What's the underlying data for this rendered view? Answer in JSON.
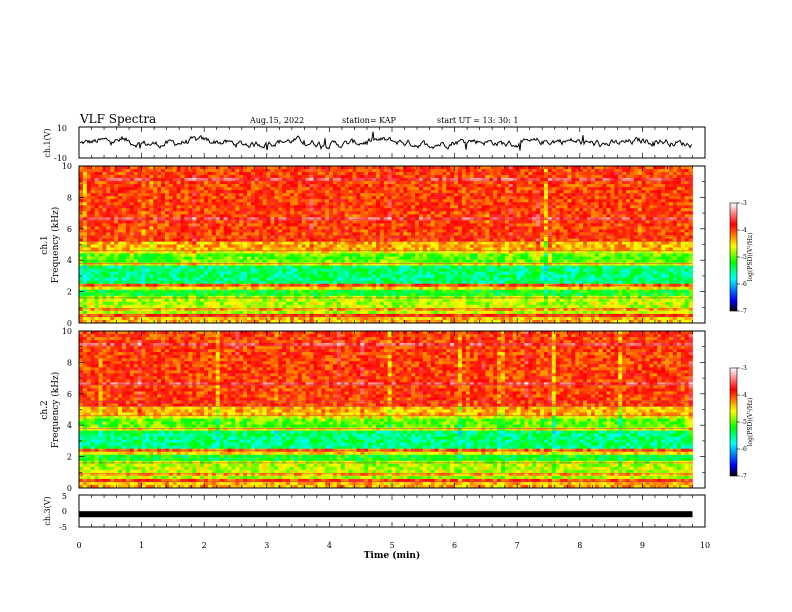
{
  "header": {
    "title": "VLF Spectra",
    "date": "Aug.15, 2022",
    "station": "station= KAP",
    "start": "start  UT  =   13: 30: 1"
  },
  "chart_data": [
    {
      "type": "line",
      "panel": "ch1-waveform",
      "ylabel": "ch.1(V)",
      "ylim": [
        -10,
        10
      ],
      "y_ticks": [
        "10",
        "-10"
      ],
      "xlim": [
        0,
        10
      ],
      "x_extent_min": 9.8,
      "note_values": "noisy waveform oscillating roughly between -3 and 3 V"
    },
    {
      "type": "heatmap",
      "panel": "ch1-spectrogram",
      "ylabel": "ch.1\nFrequency (kHz)",
      "ylim": [
        0,
        10
      ],
      "y_ticks": [
        "0",
        "2",
        "4",
        "6",
        "8",
        "10"
      ],
      "xlim": [
        0,
        10
      ],
      "colorbar": {
        "label": "log(PSD)(V²/Hz)",
        "range": [
          -7,
          -3
        ],
        "ticks": [
          "-3",
          "-4",
          "-5",
          "-6",
          "-7"
        ]
      }
    },
    {
      "type": "heatmap",
      "panel": "ch2-spectrogram",
      "ylabel": "ch.2\nFrequency (kHz)",
      "ylim": [
        0,
        10
      ],
      "y_ticks": [
        "0",
        "2",
        "4",
        "6",
        "8",
        "10"
      ],
      "xlim": [
        0,
        10
      ],
      "colorbar": {
        "label": "log(PSD)(V²/Hz)",
        "range": [
          -7,
          -3
        ],
        "ticks": [
          "-3",
          "-4",
          "-5",
          "-6",
          "-7"
        ]
      }
    },
    {
      "type": "line",
      "panel": "ch3-waveform",
      "ylabel": "ch.3(V)",
      "ylim": [
        -5,
        5
      ],
      "y_ticks": [
        "5",
        "0",
        "-5"
      ],
      "xlim": [
        0,
        10
      ],
      "level": -1
    }
  ],
  "x_axis": {
    "label": "Time  (min)",
    "ticks": [
      "0",
      "1",
      "2",
      "3",
      "4",
      "5",
      "6",
      "7",
      "8",
      "9",
      "10"
    ]
  },
  "colors": {
    "colormap": [
      "#000000",
      "#0000ff",
      "#00ffff",
      "#00ff00",
      "#ffff00",
      "#ff0000",
      "#ffffff"
    ]
  }
}
